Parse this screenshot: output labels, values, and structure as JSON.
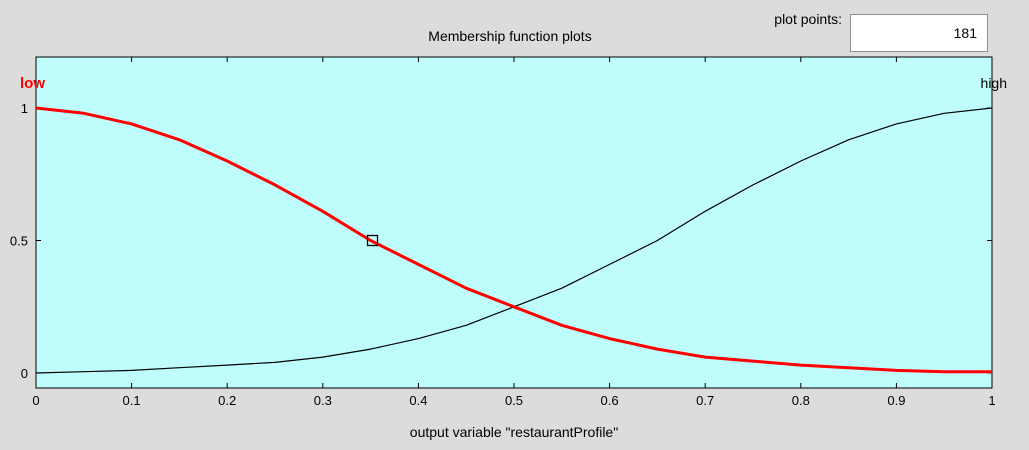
{
  "panel": {
    "title": "Membership function plots",
    "plot_points_label": "plot points:",
    "plot_points_value": "181"
  },
  "colors": {
    "window_bg": "#dcdcdc",
    "plot_bg": "#bffcfc",
    "selected_mf": "#ff0000",
    "other_mf": "#000000"
  },
  "chart_data": {
    "type": "line",
    "xlabel": "output variable \"restaurantProfile\"",
    "xlim": [
      0,
      1
    ],
    "ylim": [
      0,
      1
    ],
    "x_ticks": [
      "0",
      "0.1",
      "0.2",
      "0.3",
      "0.4",
      "0.5",
      "0.6",
      "0.7",
      "0.8",
      "0.9",
      "1"
    ],
    "y_ticks": [
      "0",
      "0.5",
      "1"
    ],
    "series": [
      {
        "name": "low",
        "selected": true,
        "color": "#ff0000",
        "x": [
          0,
          0.05,
          0.1,
          0.15,
          0.2,
          0.25,
          0.3,
          0.35,
          0.4,
          0.45,
          0.5,
          0.55,
          0.6,
          0.65,
          0.7,
          0.75,
          0.8,
          0.85,
          0.9,
          0.95,
          1
        ],
        "y": [
          1.0,
          0.98,
          0.94,
          0.88,
          0.8,
          0.71,
          0.61,
          0.5,
          0.41,
          0.32,
          0.25,
          0.18,
          0.13,
          0.09,
          0.06,
          0.045,
          0.03,
          0.02,
          0.01,
          0.005,
          0.005
        ]
      },
      {
        "name": "high",
        "selected": false,
        "color": "#000000",
        "x": [
          0,
          0.05,
          0.1,
          0.15,
          0.2,
          0.25,
          0.3,
          0.35,
          0.4,
          0.45,
          0.5,
          0.55,
          0.6,
          0.65,
          0.7,
          0.75,
          0.8,
          0.85,
          0.9,
          0.95,
          1
        ],
        "y": [
          0.0,
          0.005,
          0.01,
          0.02,
          0.03,
          0.04,
          0.06,
          0.09,
          0.13,
          0.18,
          0.25,
          0.32,
          0.41,
          0.5,
          0.61,
          0.71,
          0.8,
          0.88,
          0.94,
          0.98,
          1.0
        ]
      }
    ],
    "marker": {
      "x": 0.352,
      "y": 0.5,
      "shape": "square"
    }
  }
}
